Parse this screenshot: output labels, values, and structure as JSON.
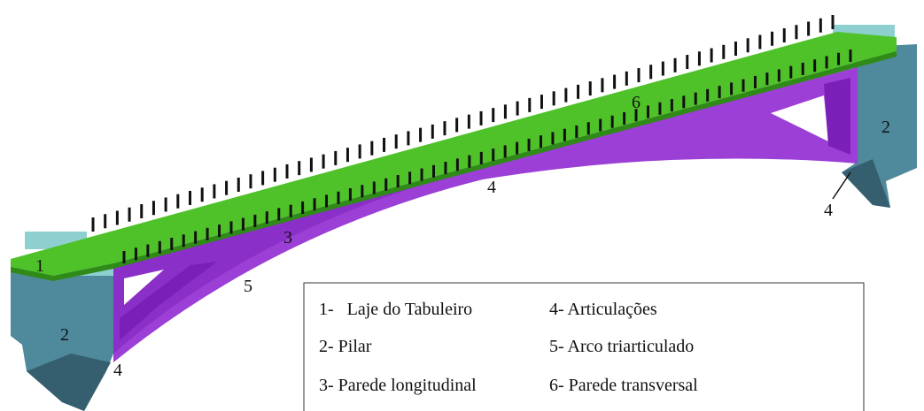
{
  "callouts": [
    {
      "label": "1"
    },
    {
      "label": "2"
    },
    {
      "label": "4"
    },
    {
      "label": "5"
    },
    {
      "label": "3"
    },
    {
      "label": "4"
    },
    {
      "label": "6"
    },
    {
      "label": "2"
    },
    {
      "label": "4"
    }
  ],
  "legend": {
    "items": [
      "1-   Laje do Tabuleiro",
      "4- Articulações",
      "2- Pilar",
      "5- Arco triarticulado",
      "3- Parede longitudinal",
      "6- Parede transversal"
    ]
  }
}
